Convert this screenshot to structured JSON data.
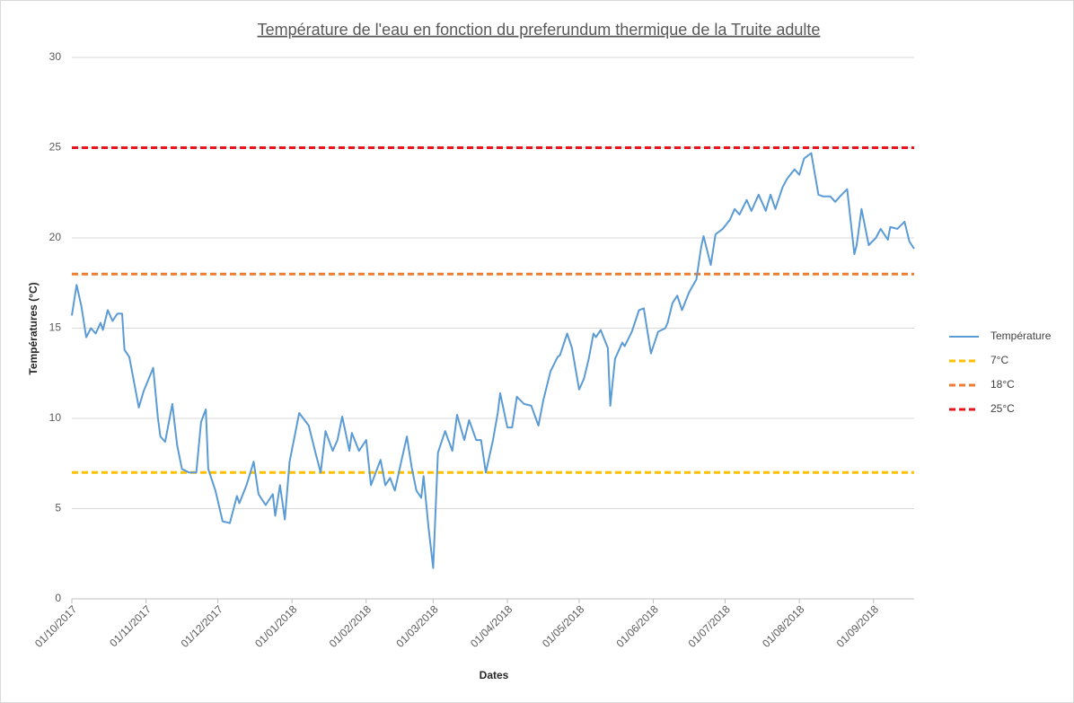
{
  "chart_data": {
    "type": "line",
    "title": "Température de l'eau en fonction du preferundum thermique de la Truite adulte",
    "x_label": "Dates",
    "y_label": "Températures (°C)",
    "x": [
      "01/10/2017",
      "03/10/2017",
      "05/10/2017",
      "07/10/2017",
      "09/10/2017",
      "11/10/2017",
      "13/10/2017",
      "14/10/2017",
      "16/10/2017",
      "18/10/2017",
      "20/10/2017",
      "22/10/2017",
      "23/10/2017",
      "25/10/2017",
      "27/10/2017",
      "29/10/2017",
      "31/10/2017",
      "04/11/2017",
      "06/11/2017",
      "07/11/2017",
      "09/11/2017",
      "12/11/2017",
      "14/11/2017",
      "16/11/2017",
      "19/11/2017",
      "22/11/2017",
      "24/11/2017",
      "26/11/2017",
      "27/11/2017",
      "30/11/2017",
      "03/12/2017",
      "06/12/2017",
      "09/12/2017",
      "10/12/2017",
      "13/12/2017",
      "16/12/2017",
      "18/12/2017",
      "21/12/2017",
      "24/12/2017",
      "25/12/2017",
      "27/12/2017",
      "29/12/2017",
      "31/12/2017",
      "04/01/2018",
      "08/01/2018",
      "11/01/2018",
      "13/01/2018",
      "15/01/2018",
      "18/01/2018",
      "20/01/2018",
      "22/01/2018",
      "25/01/2018",
      "26/01/2018",
      "29/01/2018",
      "01/02/2018",
      "03/02/2018",
      "07/02/2018",
      "09/02/2018",
      "11/02/2018",
      "13/02/2018",
      "16/02/2018",
      "18/02/2018",
      "20/02/2018",
      "22/02/2018",
      "24/02/2018",
      "25/02/2018",
      "27/02/2018",
      "01/03/2018",
      "03/03/2018",
      "06/03/2018",
      "09/03/2018",
      "11/03/2018",
      "14/03/2018",
      "16/03/2018",
      "19/03/2018",
      "21/03/2018",
      "23/03/2018",
      "26/03/2018",
      "28/03/2018",
      "29/03/2018",
      "01/04/2018",
      "03/04/2018",
      "05/04/2018",
      "08/04/2018",
      "11/04/2018",
      "14/04/2018",
      "16/04/2018",
      "19/04/2018",
      "22/04/2018",
      "23/04/2018",
      "26/04/2018",
      "28/04/2018",
      "01/05/2018",
      "03/05/2018",
      "05/05/2018",
      "07/05/2018",
      "08/05/2018",
      "10/05/2018",
      "13/05/2018",
      "14/05/2018",
      "16/05/2018",
      "19/05/2018",
      "20/05/2018",
      "23/05/2018",
      "26/05/2018",
      "28/05/2018",
      "31/05/2018",
      "03/06/2018",
      "06/06/2018",
      "07/06/2018",
      "09/06/2018",
      "11/06/2018",
      "13/06/2018",
      "16/06/2018",
      "19/06/2018",
      "21/06/2018",
      "22/06/2018",
      "25/06/2018",
      "27/06/2018",
      "30/06/2018",
      "03/07/2018",
      "05/07/2018",
      "07/07/2018",
      "10/07/2018",
      "12/07/2018",
      "15/07/2018",
      "18/07/2018",
      "20/07/2018",
      "22/07/2018",
      "25/07/2018",
      "27/07/2018",
      "30/07/2018",
      "01/08/2018",
      "03/08/2018",
      "06/08/2018",
      "09/08/2018",
      "11/08/2018",
      "14/08/2018",
      "16/08/2018",
      "18/08/2018",
      "21/08/2018",
      "24/08/2018",
      "25/08/2018",
      "27/08/2018",
      "30/08/2018",
      "02/09/2018",
      "04/09/2018",
      "07/09/2018",
      "08/09/2018",
      "11/09/2018",
      "14/09/2018",
      "16/09/2018",
      "18/09/2018"
    ],
    "series": [
      {
        "name": "Température",
        "color": "#5b9bd5",
        "values": [
          15.7,
          17.4,
          16.2,
          14.5,
          15.0,
          14.7,
          15.3,
          14.9,
          16.0,
          15.4,
          15.8,
          15.8,
          13.8,
          13.4,
          12.0,
          10.6,
          11.5,
          12.8,
          10.0,
          9.0,
          8.7,
          10.8,
          8.5,
          7.2,
          7.0,
          7.0,
          9.8,
          10.5,
          7.2,
          6.0,
          4.3,
          4.2,
          5.7,
          5.3,
          6.3,
          7.6,
          5.8,
          5.2,
          5.8,
          4.6,
          6.3,
          4.4,
          7.6,
          10.3,
          9.6,
          8.0,
          7.0,
          9.3,
          8.2,
          8.8,
          10.1,
          8.2,
          9.2,
          8.2,
          8.8,
          6.3,
          7.7,
          6.3,
          6.7,
          6.0,
          7.8,
          9.0,
          7.3,
          6.0,
          5.6,
          6.8,
          4.0,
          1.7,
          8.1,
          9.3,
          8.2,
          10.2,
          8.8,
          9.9,
          8.8,
          8.8,
          7.0,
          8.8,
          10.3,
          11.4,
          9.5,
          9.5,
          11.2,
          10.8,
          10.7,
          9.6,
          11.0,
          12.6,
          13.4,
          13.5,
          14.7,
          13.9,
          11.6,
          12.2,
          13.3,
          14.7,
          14.5,
          14.9,
          13.9,
          10.7,
          13.3,
          14.2,
          14.0,
          14.8,
          16.0,
          16.1,
          13.6,
          14.8,
          15.0,
          15.3,
          16.4,
          16.8,
          16.0,
          17.0,
          17.7,
          19.5,
          20.1,
          18.5,
          20.2,
          20.5,
          21.0,
          21.6,
          21.3,
          22.1,
          21.5,
          22.4,
          21.5,
          22.4,
          21.6,
          22.8,
          23.3,
          23.8,
          23.5,
          24.4,
          24.7,
          22.4,
          22.3,
          22.3,
          22.0,
          22.3,
          22.7,
          19.1,
          19.6,
          21.6,
          19.6,
          20.0,
          20.5,
          19.9,
          20.6,
          20.5,
          20.9,
          19.8,
          19.4
        ]
      }
    ],
    "reference_lines": [
      {
        "name": "7°C",
        "value": 7,
        "color": "#ffc000"
      },
      {
        "name": "18°C",
        "value": 18,
        "color": "#ed7d31"
      },
      {
        "name": "25°C",
        "value": 25,
        "color": "#e8141e"
      }
    ],
    "xlim": [
      "01/10/2017",
      "18/09/2018"
    ],
    "xticks": [
      "01/10/2017",
      "01/11/2017",
      "01/12/2017",
      "01/01/2018",
      "01/02/2018",
      "01/03/2018",
      "01/04/2018",
      "01/05/2018",
      "01/06/2018",
      "01/07/2018",
      "01/08/2018",
      "01/09/2018"
    ],
    "ylim": [
      0,
      30
    ],
    "yticks": [
      0,
      5,
      10,
      15,
      20,
      25,
      30
    ],
    "grid": true,
    "legend": "right"
  }
}
